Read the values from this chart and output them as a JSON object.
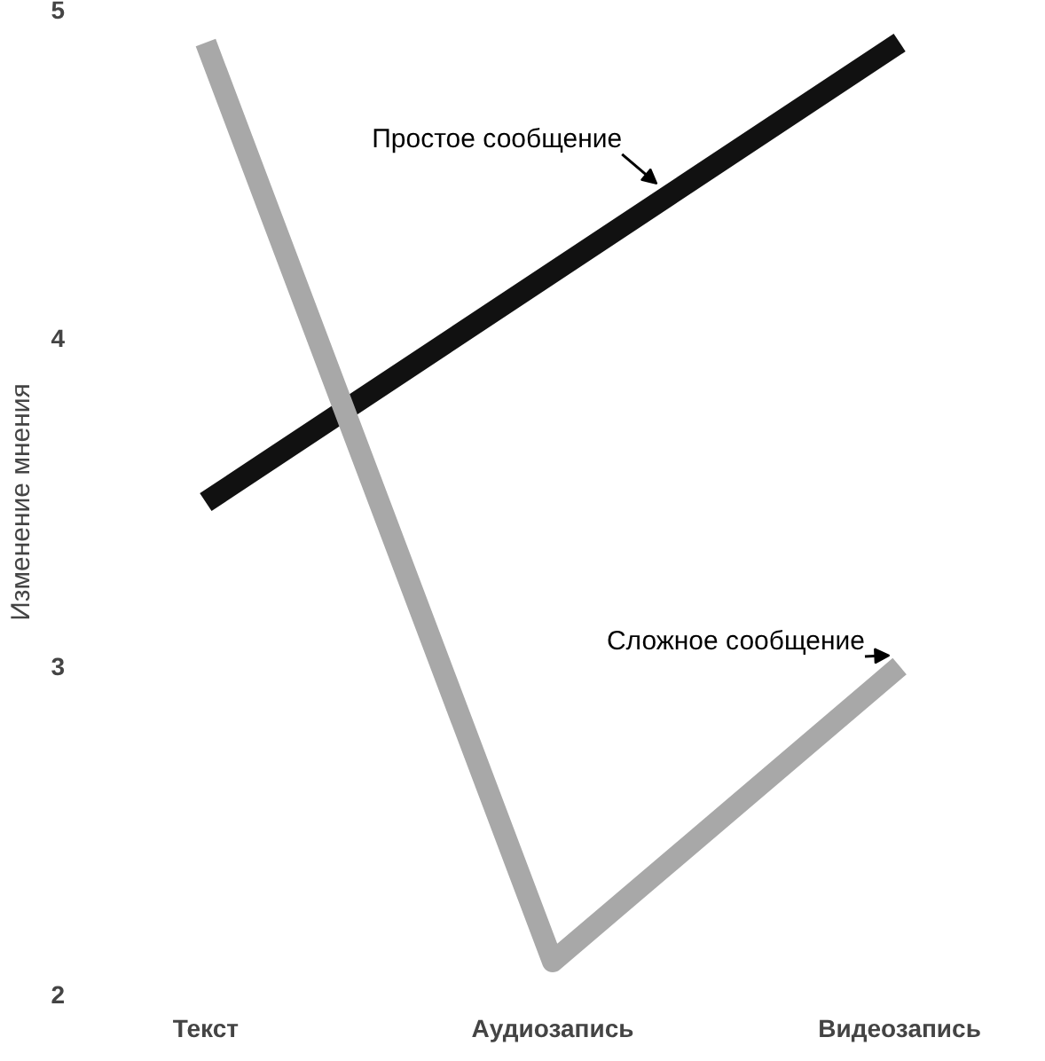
{
  "chart_data": {
    "type": "line",
    "ylabel": "Изменение мнения",
    "categories": [
      "Текст",
      "Аудиозапись",
      "Видеозапись"
    ],
    "series": [
      {
        "name": "Простое сообщение",
        "color": "#111111",
        "values": [
          3.5,
          4.2,
          4.9
        ]
      },
      {
        "name": "Сложное сообщение",
        "color": "#a8a8a8",
        "values": [
          4.9,
          2.1,
          3.0
        ]
      }
    ],
    "ylim": [
      2,
      5
    ],
    "yticks": [
      2,
      3,
      4,
      5
    ],
    "grid": false,
    "marker": "none",
    "line_style": "solid"
  }
}
